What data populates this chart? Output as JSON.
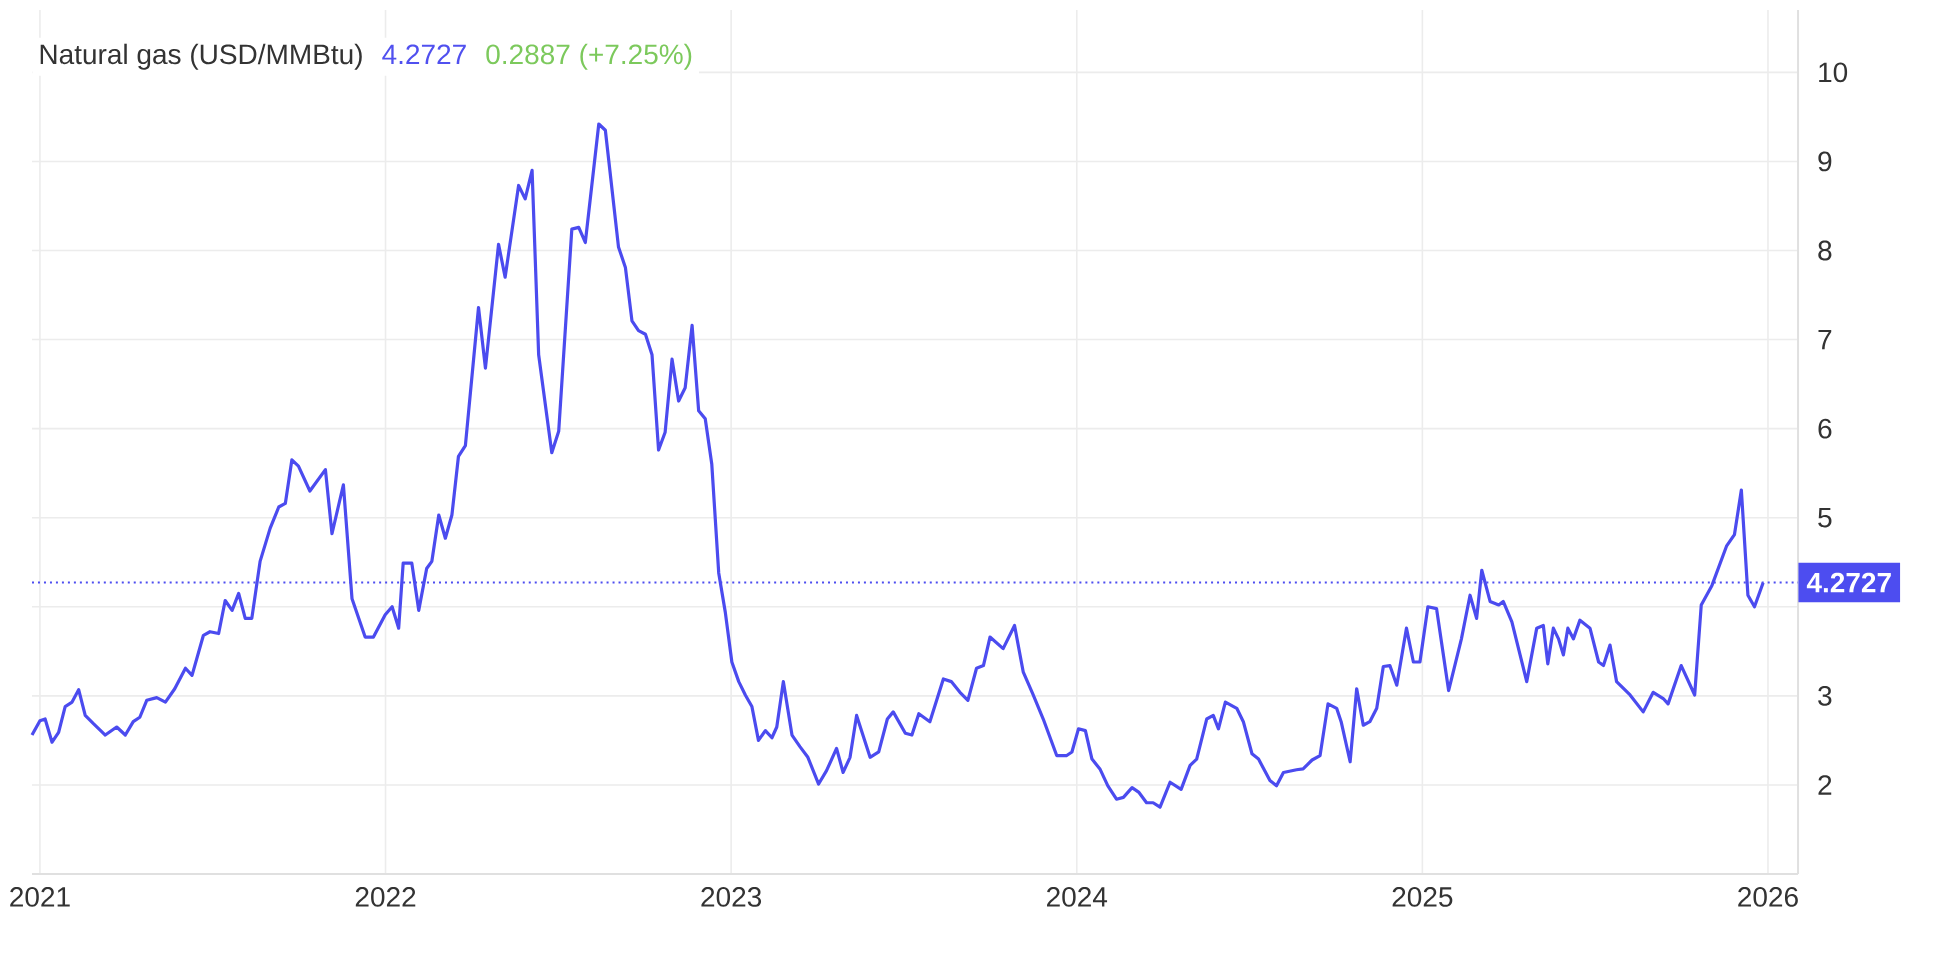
{
  "chart_data": {
    "type": "line",
    "title": "Natural gas (USD/MMBtu)",
    "annotations": [
      "4.2727",
      "0.2887 (+7.25%)"
    ],
    "color": "#4b4bef",
    "x": [
      2020.977,
      2021.0,
      2021.015,
      2021.035,
      2021.054,
      2021.073,
      2021.093,
      2021.112,
      2021.131,
      2021.154,
      2021.189,
      2021.222,
      2021.247,
      2021.27,
      2021.289,
      2021.309,
      2021.338,
      2021.363,
      2021.39,
      2021.421,
      2021.44,
      2021.473,
      2021.492,
      2021.517,
      2021.536,
      2021.556,
      2021.575,
      2021.594,
      2021.613,
      2021.637,
      2021.666,
      2021.691,
      2021.71,
      2021.729,
      2021.748,
      2021.781,
      2021.826,
      2021.845,
      2021.878,
      2021.903,
      2021.941,
      2021.965,
      2021.999,
      2022.019,
      2022.038,
      2022.051,
      2022.076,
      2022.096,
      2022.119,
      2022.134,
      2022.154,
      2022.173,
      2022.192,
      2022.211,
      2022.231,
      2022.269,
      2022.289,
      2022.327,
      2022.346,
      2022.385,
      2022.404,
      2022.424,
      2022.443,
      2022.481,
      2022.501,
      2022.539,
      2022.559,
      2022.578,
      2022.617,
      2022.636,
      2022.674,
      2022.694,
      2022.713,
      2022.732,
      2022.752,
      2022.771,
      2022.79,
      2022.809,
      2022.829,
      2022.848,
      2022.867,
      2022.887,
      2022.906,
      2022.925,
      2022.944,
      2022.964,
      2022.983,
      2023.002,
      2023.022,
      2023.041,
      2023.06,
      2023.079,
      2023.099,
      2023.118,
      2023.132,
      2023.151,
      2023.176,
      2023.199,
      2023.222,
      2023.253,
      2023.276,
      2023.305,
      2023.324,
      2023.344,
      2023.363,
      2023.402,
      2023.427,
      2023.452,
      2023.469,
      2023.504,
      2023.523,
      2023.543,
      2023.575,
      2023.614,
      2023.637,
      2023.662,
      2023.685,
      2023.71,
      2023.73,
      2023.749,
      2023.787,
      2023.82,
      2023.845,
      2023.874,
      2023.903,
      2023.942,
      2023.971,
      2023.986,
      2024.005,
      2024.025,
      2024.044,
      2024.067,
      2024.09,
      2024.115,
      2024.135,
      2024.16,
      2024.179,
      2024.202,
      2024.221,
      2024.241,
      2024.27,
      2024.302,
      2024.328,
      2024.347,
      2024.376,
      2024.395,
      2024.41,
      2024.43,
      2024.463,
      2024.482,
      2024.507,
      2024.526,
      2024.559,
      2024.578,
      2024.598,
      2024.636,
      2024.655,
      2024.681,
      2024.704,
      2024.727,
      2024.752,
      2024.765,
      2024.791,
      2024.81,
      2024.829,
      2024.848,
      2024.868,
      2024.887,
      2024.906,
      2024.926,
      2024.954,
      2024.974,
      2024.993,
      2025.016,
      2025.041,
      2025.076,
      2025.113,
      2025.138,
      2025.157,
      2025.172,
      2025.196,
      2025.221,
      2025.234,
      2025.259,
      2025.302,
      2025.331,
      2025.35,
      2025.363,
      2025.379,
      2025.394,
      2025.408,
      2025.421,
      2025.437,
      2025.456,
      2025.485,
      2025.51,
      2025.524,
      2025.543,
      2025.562,
      2025.601,
      2025.639,
      2025.668,
      2025.697,
      2025.711,
      2025.749,
      2025.788,
      2025.807,
      2025.838,
      2025.88,
      2025.903,
      2025.923,
      2025.942,
      2025.961,
      2025.986
    ],
    "values": [
      2.56,
      2.72,
      2.74,
      2.48,
      2.59,
      2.88,
      2.93,
      3.07,
      2.78,
      2.69,
      2.56,
      2.65,
      2.56,
      2.71,
      2.76,
      2.95,
      2.98,
      2.93,
      3.08,
      3.31,
      3.23,
      3.68,
      3.72,
      3.7,
      4.07,
      3.96,
      4.15,
      3.87,
      3.87,
      4.51,
      4.88,
      5.12,
      5.16,
      5.65,
      5.58,
      5.3,
      5.54,
      4.82,
      5.37,
      4.09,
      3.66,
      3.66,
      3.91,
      4.0,
      3.76,
      4.49,
      4.49,
      3.96,
      4.43,
      4.51,
      5.03,
      4.77,
      5.03,
      5.69,
      5.81,
      7.36,
      6.68,
      8.07,
      7.7,
      8.73,
      8.58,
      8.9,
      6.83,
      5.73,
      5.97,
      8.24,
      8.26,
      8.09,
      9.42,
      9.35,
      8.04,
      7.81,
      7.21,
      7.1,
      7.06,
      6.83,
      5.76,
      5.96,
      6.78,
      6.31,
      6.46,
      7.16,
      6.2,
      6.11,
      5.6,
      4.38,
      3.94,
      3.38,
      3.16,
      3.01,
      2.88,
      2.5,
      2.61,
      2.53,
      2.65,
      3.16,
      2.56,
      2.43,
      2.31,
      2.01,
      2.16,
      2.41,
      2.14,
      2.31,
      2.78,
      2.31,
      2.37,
      2.74,
      2.82,
      2.58,
      2.56,
      2.8,
      2.71,
      3.19,
      3.16,
      3.04,
      2.95,
      3.31,
      3.34,
      3.66,
      3.53,
      3.79,
      3.27,
      3.01,
      2.74,
      2.33,
      2.33,
      2.37,
      2.63,
      2.61,
      2.29,
      2.18,
      1.99,
      1.84,
      1.86,
      1.97,
      1.92,
      1.8,
      1.8,
      1.75,
      2.03,
      1.95,
      2.22,
      2.29,
      2.74,
      2.78,
      2.63,
      2.93,
      2.86,
      2.71,
      2.35,
      2.29,
      2.05,
      1.99,
      2.14,
      2.17,
      2.18,
      2.28,
      2.33,
      2.91,
      2.86,
      2.71,
      2.26,
      3.08,
      2.67,
      2.71,
      2.86,
      3.33,
      3.34,
      3.12,
      3.76,
      3.38,
      3.38,
      4.0,
      3.98,
      3.06,
      3.64,
      4.13,
      3.87,
      4.41,
      4.06,
      4.02,
      4.06,
      3.83,
      3.16,
      3.76,
      3.79,
      3.36,
      3.76,
      3.64,
      3.46,
      3.76,
      3.64,
      3.85,
      3.76,
      3.38,
      3.34,
      3.57,
      3.16,
      3.01,
      2.82,
      3.04,
      2.97,
      2.91,
      3.34,
      3.01,
      4.02,
      4.24,
      4.68,
      4.81,
      5.31,
      4.13,
      4.0,
      4.27
    ],
    "xlim": [
      2020.977,
      2026.087
    ],
    "ylim": [
      1,
      10.7
    ],
    "xticks": [
      2021,
      2022,
      2023,
      2024,
      2025,
      2026
    ],
    "yticks": [
      2,
      3,
      {
        "value": 4,
        "label": null
      },
      5,
      6,
      7,
      8,
      9,
      10
    ],
    "grid": true,
    "ref_lines": [
      {
        "axis": "y",
        "value": 4.2727,
        "label": "4.2727",
        "color": "#4d4df0",
        "line_style": "dotted"
      }
    ]
  }
}
